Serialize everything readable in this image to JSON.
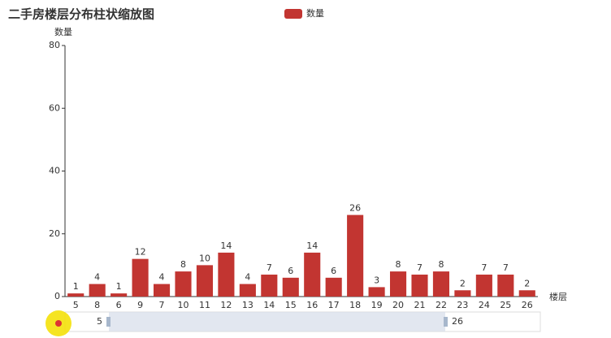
{
  "chart_data": {
    "type": "bar",
    "title": "二手房楼层分布柱状缩放图",
    "legend": "数量",
    "y_axis_label": "数量",
    "x_axis_label": "楼层",
    "categories": [
      "5",
      "8",
      "6",
      "9",
      "7",
      "10",
      "11",
      "12",
      "13",
      "14",
      "15",
      "16",
      "17",
      "18",
      "19",
      "20",
      "21",
      "22",
      "23",
      "24",
      "25",
      "26"
    ],
    "series": [
      {
        "name": "数量",
        "color": "#c23531",
        "values": [
          1,
          4,
          1,
          12,
          4,
          8,
          10,
          14,
          4,
          7,
          6,
          14,
          6,
          26,
          3,
          8,
          7,
          8,
          2,
          7,
          7,
          2
        ]
      }
    ],
    "ylim": [
      0,
      80
    ],
    "yticks": [
      0,
      20,
      40,
      60,
      80
    ]
  }
}
